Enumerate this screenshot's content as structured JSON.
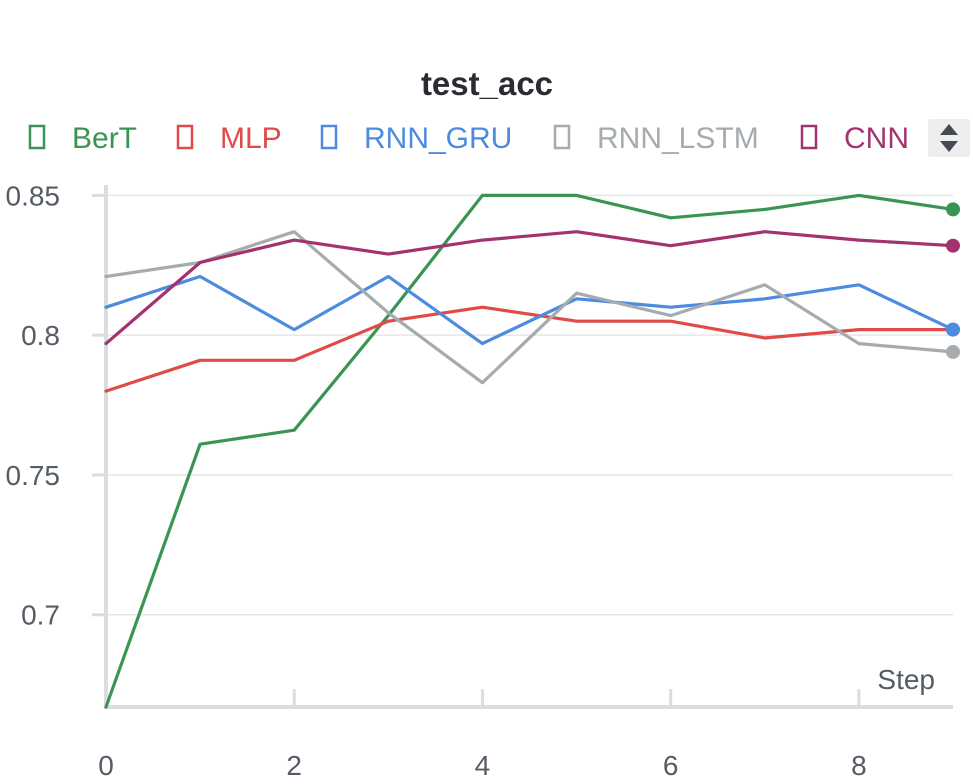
{
  "chart_data": {
    "type": "line",
    "title": "test_acc",
    "xlabel": "Step",
    "ylabel": "",
    "xlim": [
      0,
      9
    ],
    "ylim": [
      0.667,
      0.853
    ],
    "x_ticks": [
      "0",
      "2",
      "4",
      "6",
      "8"
    ],
    "y_ticks": [
      "0.85",
      "0.8",
      "0.75",
      "0.7"
    ],
    "legend_position": "top",
    "grid": true,
    "x": [
      0,
      1,
      2,
      3,
      4,
      5,
      6,
      7,
      8,
      9
    ],
    "series": [
      {
        "name": "BerT",
        "color": "#3a9453",
        "values": [
          0.667,
          0.761,
          0.766,
          0.807,
          0.85,
          0.85,
          0.842,
          0.845,
          0.85,
          0.845
        ]
      },
      {
        "name": "MLP",
        "color": "#e04b48",
        "values": [
          0.78,
          0.791,
          0.791,
          0.805,
          0.81,
          0.805,
          0.805,
          0.799,
          0.802,
          0.802
        ]
      },
      {
        "name": "RNN_GRU",
        "color": "#4d8be0",
        "values": [
          0.81,
          0.821,
          0.802,
          0.821,
          0.797,
          0.813,
          0.81,
          0.813,
          0.818,
          0.802
        ]
      },
      {
        "name": "RNN_LSTM",
        "color": "#a5abae",
        "values": [
          0.821,
          0.826,
          0.837,
          0.808,
          0.783,
          0.815,
          0.807,
          0.818,
          0.797,
          0.794
        ]
      },
      {
        "name": "CNN",
        "color": "#a3336f",
        "values": [
          0.797,
          0.826,
          0.834,
          0.829,
          0.834,
          0.837,
          0.832,
          0.837,
          0.834,
          0.832
        ]
      }
    ]
  }
}
